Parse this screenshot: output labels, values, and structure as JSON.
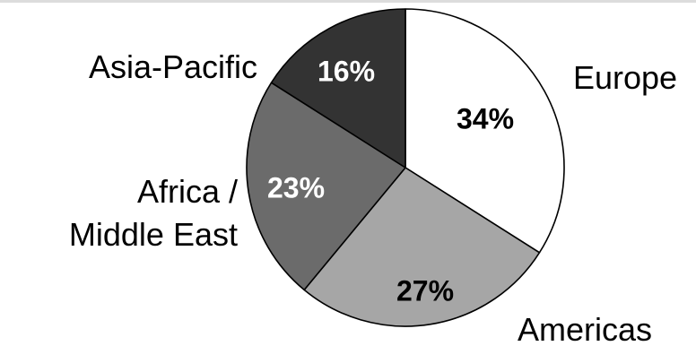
{
  "chart_data": {
    "type": "pie",
    "categories": [
      "Europe",
      "Americas",
      "Africa / Middle East",
      "Asia-Pacific"
    ],
    "label_lines": [
      [
        "Europe"
      ],
      [
        "Americas"
      ],
      [
        "Africa /",
        "Middle East"
      ],
      [
        "Asia-Pacific"
      ]
    ],
    "values": [
      34,
      27,
      23,
      16
    ],
    "data_labels": [
      "34%",
      "27%",
      "23%",
      "16%"
    ],
    "colors": [
      "#ffffff",
      "#a6a6a6",
      "#6b6b6b",
      "#333333"
    ],
    "label_colors": [
      "#000000",
      "#000000",
      "#ffffff",
      "#ffffff"
    ],
    "start": "12 o'clock",
    "direction": "clockwise",
    "legend": "none"
  }
}
